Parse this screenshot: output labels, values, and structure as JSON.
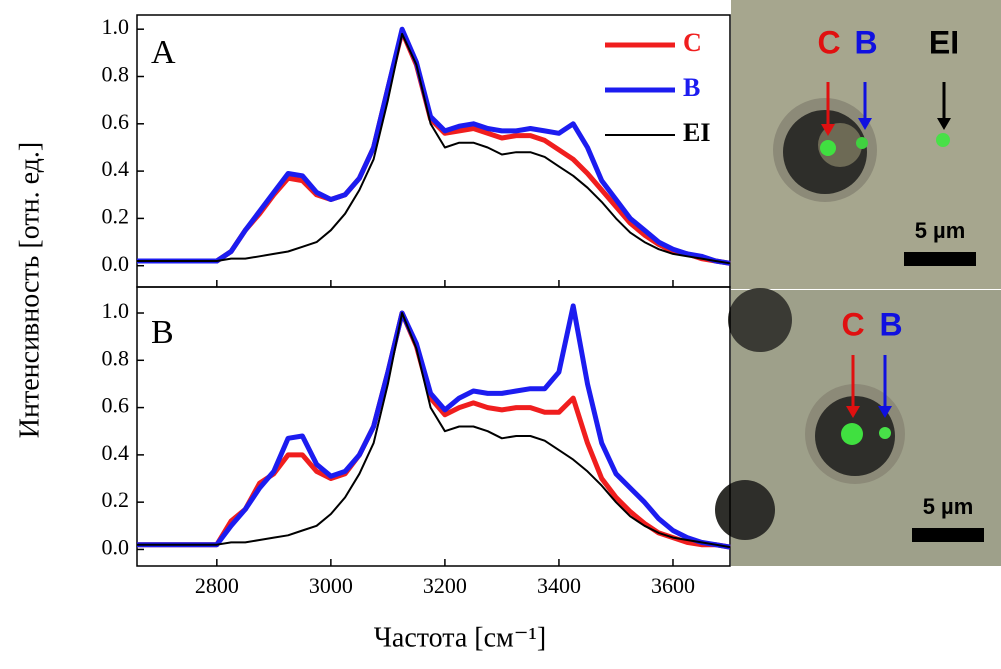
{
  "chart_data": [
    {
      "type": "line",
      "panel_label": "A",
      "ylabel": "Интенсивность [отн. ед.]",
      "x": [
        2660,
        2700,
        2725,
        2750,
        2775,
        2800,
        2825,
        2850,
        2875,
        2900,
        2925,
        2950,
        2975,
        3000,
        3025,
        3050,
        3075,
        3100,
        3125,
        3150,
        3175,
        3200,
        3225,
        3250,
        3275,
        3300,
        3325,
        3350,
        3375,
        3400,
        3425,
        3450,
        3475,
        3500,
        3525,
        3550,
        3575,
        3600,
        3625,
        3650,
        3675,
        3700
      ],
      "xlim": [
        2660,
        3700
      ],
      "ylim": [
        -0.09,
        1.06
      ],
      "yticks": [
        {
          "value": 0,
          "label": "0.0"
        },
        0.2,
        0.4,
        0.6,
        0.8,
        {
          "value": 1,
          "label": "1.0"
        }
      ],
      "legend": "upper right",
      "series": [
        {
          "name": "C",
          "color": "#f01e1e",
          "width": 5,
          "values": [
            0.02,
            0.02,
            0.02,
            0.02,
            0.02,
            0.02,
            0.06,
            0.15,
            0.22,
            0.3,
            0.37,
            0.36,
            0.3,
            0.28,
            0.3,
            0.37,
            0.5,
            0.75,
            0.99,
            0.85,
            0.62,
            0.56,
            0.57,
            0.58,
            0.56,
            0.54,
            0.55,
            0.55,
            0.53,
            0.49,
            0.45,
            0.39,
            0.32,
            0.25,
            0.18,
            0.13,
            0.09,
            0.06,
            0.05,
            0.03,
            0.02,
            0.01
          ]
        },
        {
          "name": "B",
          "color": "#1c1cf0",
          "width": 5,
          "values": [
            0.02,
            0.02,
            0.02,
            0.02,
            0.02,
            0.02,
            0.06,
            0.15,
            0.23,
            0.31,
            0.39,
            0.38,
            0.31,
            0.28,
            0.3,
            0.37,
            0.5,
            0.75,
            1.0,
            0.86,
            0.63,
            0.57,
            0.59,
            0.6,
            0.58,
            0.57,
            0.57,
            0.58,
            0.57,
            0.56,
            0.6,
            0.5,
            0.36,
            0.28,
            0.2,
            0.15,
            0.1,
            0.07,
            0.05,
            0.04,
            0.02,
            0.01
          ]
        },
        {
          "name": "EI",
          "color": "#000000",
          "width": 2,
          "values": [
            0.02,
            0.02,
            0.02,
            0.02,
            0.02,
            0.02,
            0.03,
            0.03,
            0.04,
            0.05,
            0.06,
            0.08,
            0.1,
            0.15,
            0.22,
            0.32,
            0.45,
            0.7,
            0.98,
            0.85,
            0.6,
            0.5,
            0.52,
            0.52,
            0.5,
            0.47,
            0.48,
            0.48,
            0.46,
            0.42,
            0.38,
            0.33,
            0.27,
            0.2,
            0.14,
            0.1,
            0.07,
            0.05,
            0.04,
            0.03,
            0.02,
            0.01
          ]
        }
      ]
    },
    {
      "type": "line",
      "panel_label": "B",
      "xlabel": "Частота [см⁻¹]",
      "x": [
        2660,
        2700,
        2725,
        2750,
        2775,
        2800,
        2825,
        2850,
        2875,
        2900,
        2925,
        2950,
        2975,
        3000,
        3025,
        3050,
        3075,
        3100,
        3125,
        3150,
        3175,
        3200,
        3225,
        3250,
        3275,
        3300,
        3325,
        3350,
        3375,
        3400,
        3425,
        3450,
        3475,
        3500,
        3525,
        3550,
        3575,
        3600,
        3625,
        3650,
        3675,
        3700
      ],
      "xlim": [
        2660,
        3700
      ],
      "xticks": [
        2800,
        3000,
        3200,
        3400,
        3600
      ],
      "ylim": [
        -0.07,
        1.11
      ],
      "yticks": [
        {
          "value": 0,
          "label": "0.0"
        },
        0.2,
        0.4,
        0.6,
        0.8,
        {
          "value": 1,
          "label": "1.0"
        }
      ],
      "series": [
        {
          "color": "#f01e1e",
          "width": 5,
          "values": [
            0.02,
            0.02,
            0.02,
            0.02,
            0.02,
            0.02,
            0.12,
            0.17,
            0.28,
            0.32,
            0.4,
            0.4,
            0.33,
            0.3,
            0.32,
            0.4,
            0.52,
            0.75,
            1.0,
            0.86,
            0.64,
            0.57,
            0.6,
            0.62,
            0.6,
            0.59,
            0.6,
            0.6,
            0.58,
            0.58,
            0.64,
            0.45,
            0.3,
            0.22,
            0.16,
            0.11,
            0.07,
            0.05,
            0.03,
            0.02,
            0.02,
            0.01
          ]
        },
        {
          "color": "#1c1cf0",
          "width": 5,
          "values": [
            0.02,
            0.02,
            0.02,
            0.02,
            0.02,
            0.02,
            0.1,
            0.17,
            0.26,
            0.33,
            0.47,
            0.48,
            0.36,
            0.31,
            0.33,
            0.4,
            0.52,
            0.75,
            1.0,
            0.87,
            0.66,
            0.59,
            0.64,
            0.67,
            0.66,
            0.66,
            0.67,
            0.68,
            0.68,
            0.75,
            1.03,
            0.7,
            0.45,
            0.32,
            0.26,
            0.2,
            0.13,
            0.08,
            0.05,
            0.03,
            0.02,
            0.01
          ]
        },
        {
          "color": "#000000",
          "width": 2,
          "values": [
            0.02,
            0.02,
            0.02,
            0.02,
            0.02,
            0.02,
            0.03,
            0.03,
            0.04,
            0.05,
            0.06,
            0.08,
            0.1,
            0.15,
            0.22,
            0.32,
            0.45,
            0.7,
            1.0,
            0.85,
            0.6,
            0.5,
            0.52,
            0.52,
            0.5,
            0.47,
            0.48,
            0.48,
            0.46,
            0.42,
            0.38,
            0.33,
            0.27,
            0.2,
            0.14,
            0.1,
            0.07,
            0.05,
            0.04,
            0.03,
            0.02,
            0.01
          ]
        }
      ]
    }
  ],
  "images": [
    {
      "labels": [
        "C",
        "B",
        "EI"
      ],
      "scale": "5 µm"
    },
    {
      "labels": [
        "C",
        "B"
      ],
      "scale": "5 µm"
    }
  ]
}
